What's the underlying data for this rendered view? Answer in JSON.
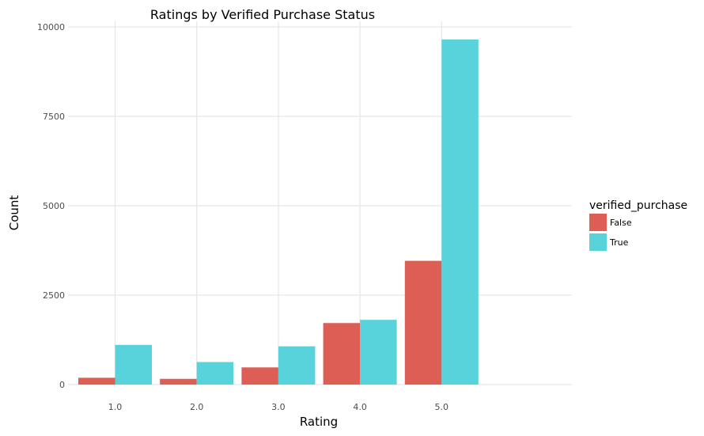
{
  "chart_data": {
    "type": "bar",
    "title": "Ratings by Verified Purchase Status",
    "xlabel": "Rating",
    "ylabel": "Count",
    "categories": [
      "1.0",
      "2.0",
      "3.0",
      "4.0",
      "5.0"
    ],
    "series": [
      {
        "name": "False",
        "color": "#dc5e55",
        "values": [
          190,
          160,
          480,
          1720,
          3460
        ]
      },
      {
        "name": "True",
        "color": "#58d3dc",
        "values": [
          1110,
          630,
          1070,
          1810,
          9650
        ]
      }
    ],
    "yticks": [
      0,
      2500,
      5000,
      7500,
      10000
    ],
    "ylim": [
      0,
      10000
    ],
    "grid": true,
    "legend": {
      "title": "verified_purchase",
      "position": "right"
    }
  }
}
